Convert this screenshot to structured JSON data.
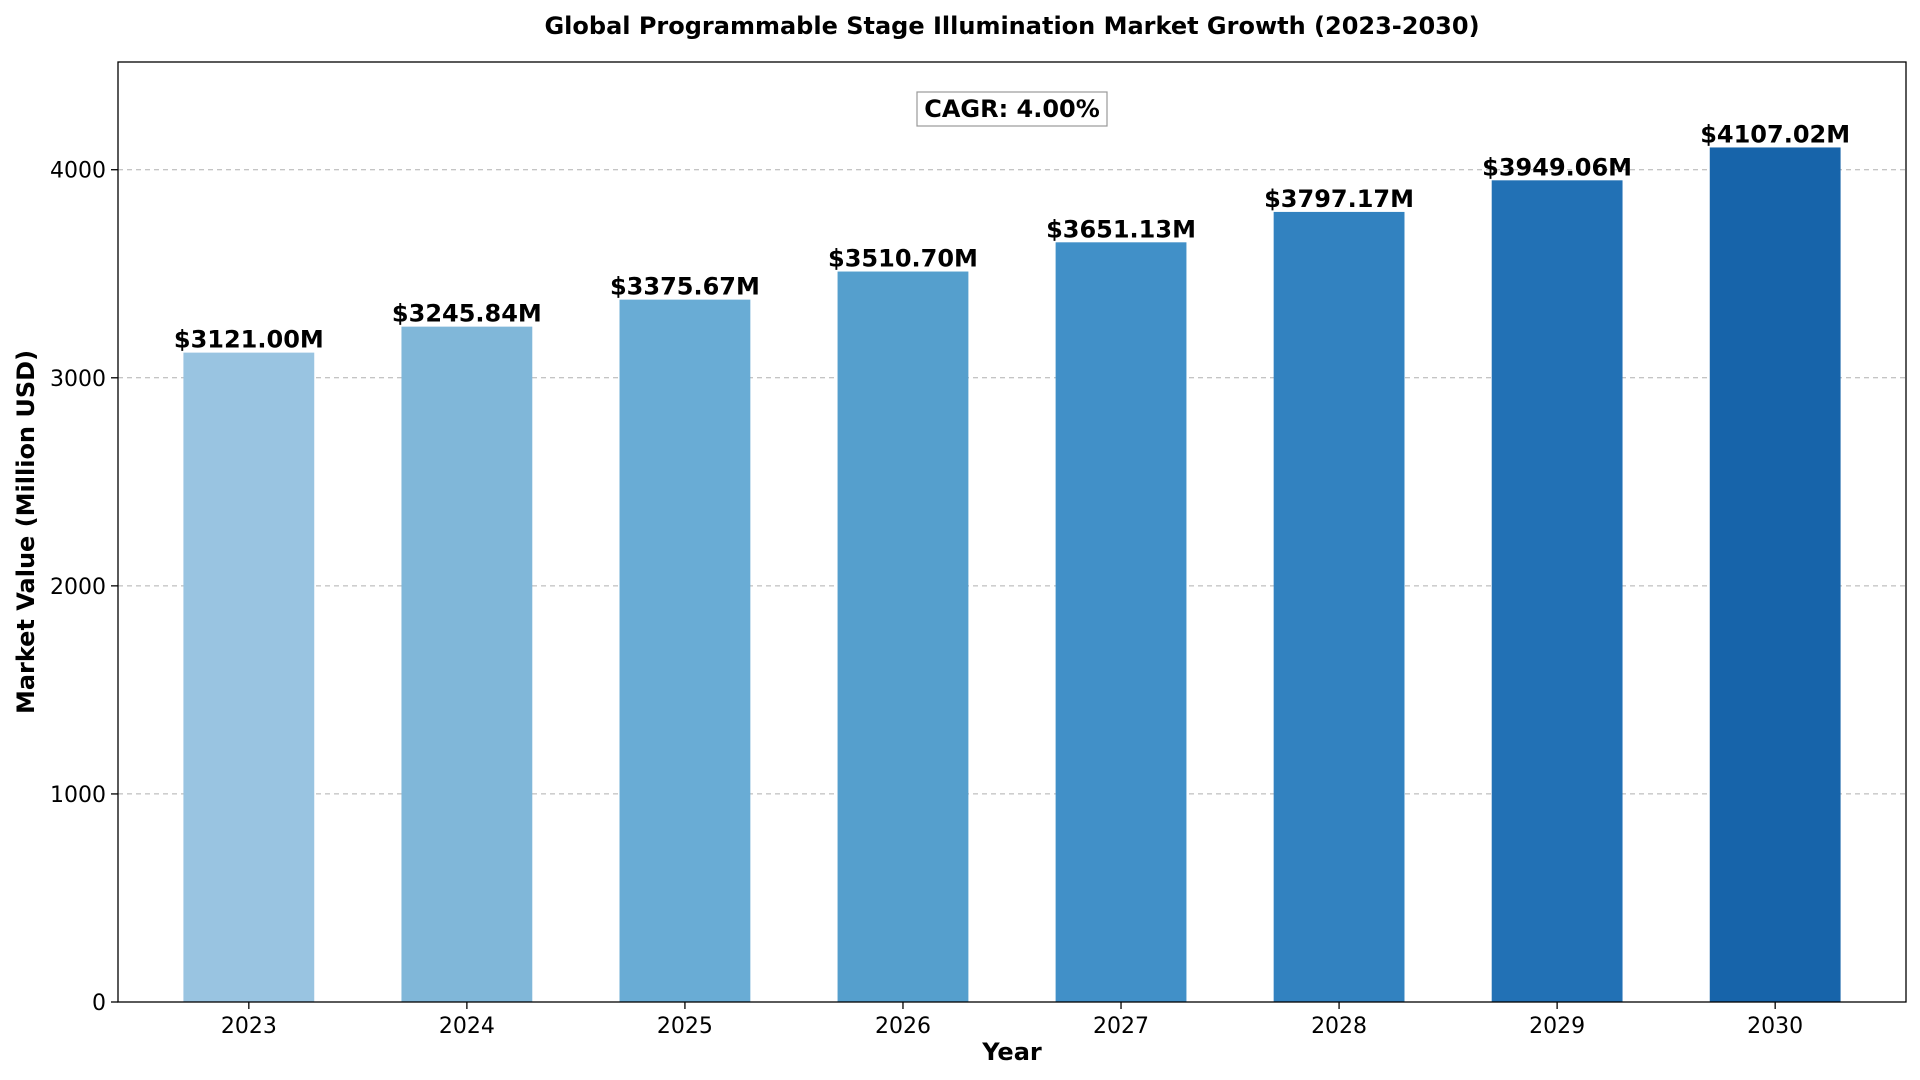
{
  "chart_data": {
    "type": "bar",
    "title": "Global Programmable Stage Illumination Market Growth (2023-2030)",
    "xlabel": "Year",
    "ylabel": "Market Value (Million USD)",
    "categories": [
      "2023",
      "2024",
      "2025",
      "2026",
      "2027",
      "2028",
      "2029",
      "2030"
    ],
    "values": [
      3121.0,
      3245.84,
      3375.67,
      3510.7,
      3651.13,
      3797.17,
      3949.06,
      4107.02
    ],
    "value_labels": [
      "$3121.00M",
      "$3245.84M",
      "$3375.67M",
      "$3510.70M",
      "$3651.13M",
      "$3797.17M",
      "$3949.06M",
      "$4107.02M"
    ],
    "colors": [
      "#99c4e1",
      "#80b7d9",
      "#69acd5",
      "#559fcd",
      "#4190c8",
      "#3282c0",
      "#2271b5",
      "#1764aa"
    ],
    "ylim": [
      0,
      4517.72
    ],
    "yticks": [
      0,
      1000,
      2000,
      3000,
      4000
    ],
    "ytick_labels": [
      "0",
      "1000",
      "2000",
      "3000",
      "4000"
    ],
    "grid": "y-dashed",
    "annotation": "CAGR: 4.00%"
  }
}
